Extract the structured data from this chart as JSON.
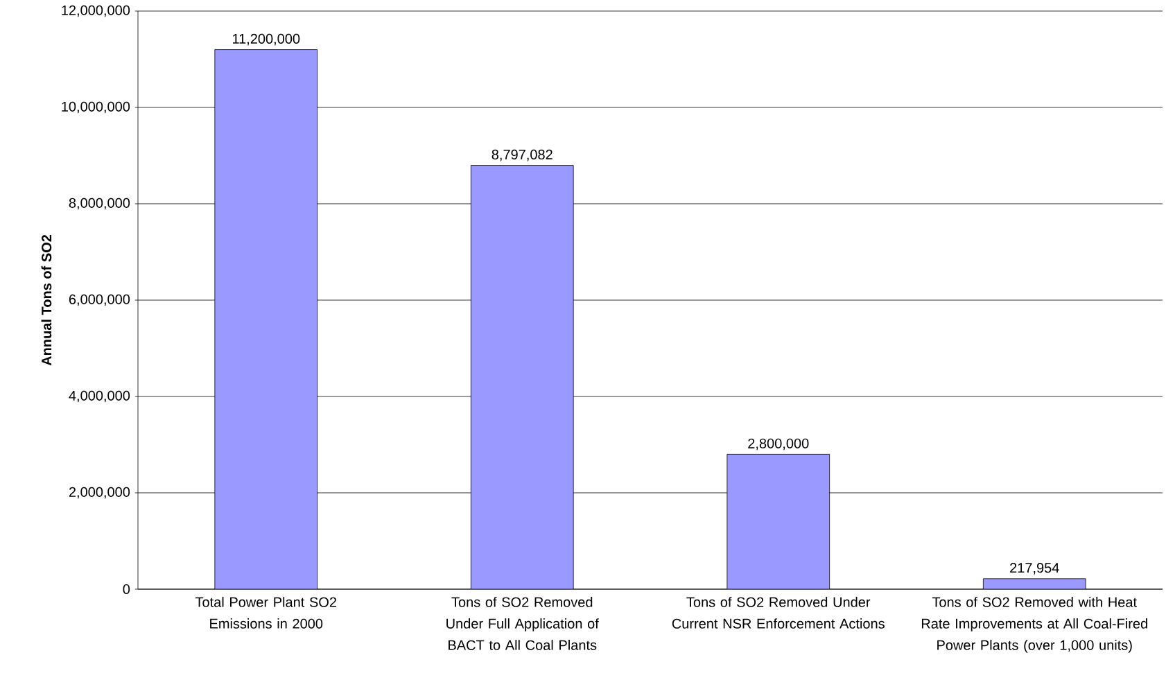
{
  "chart_data": {
    "type": "bar",
    "ylabel": "Annual Tons of SO2",
    "categories": [
      "Total Power Plant SO2 Emissions in 2000",
      "Tons of SO2 Removed Under Full Application of BACT to All Coal Plants",
      "Tons of SO2 Removed Under Current NSR Enforcement Actions",
      "Tons of SO2 Removed with Heat Rate Improvements at All Coal-Fired Power Plants (over 1,000 units)"
    ],
    "values": [
      11200000,
      8797082,
      2800000,
      217954
    ],
    "value_labels": [
      "11,200,000",
      "8,797,082",
      "2,800,000",
      "217,954"
    ],
    "color": "#9999ff",
    "ylim": [
      0,
      12000000
    ],
    "yticks": [
      {
        "value": 0,
        "label": "0"
      },
      {
        "value": 2000000,
        "label": "2,000,000"
      },
      {
        "value": 4000000,
        "label": "4,000,000"
      },
      {
        "value": 6000000,
        "label": "6,000,000"
      },
      {
        "value": 8000000,
        "label": "8,000,000"
      },
      {
        "value": 10000000,
        "label": "10,000,000"
      },
      {
        "value": 12000000,
        "label": "12,000,000"
      }
    ],
    "grid": "y"
  }
}
